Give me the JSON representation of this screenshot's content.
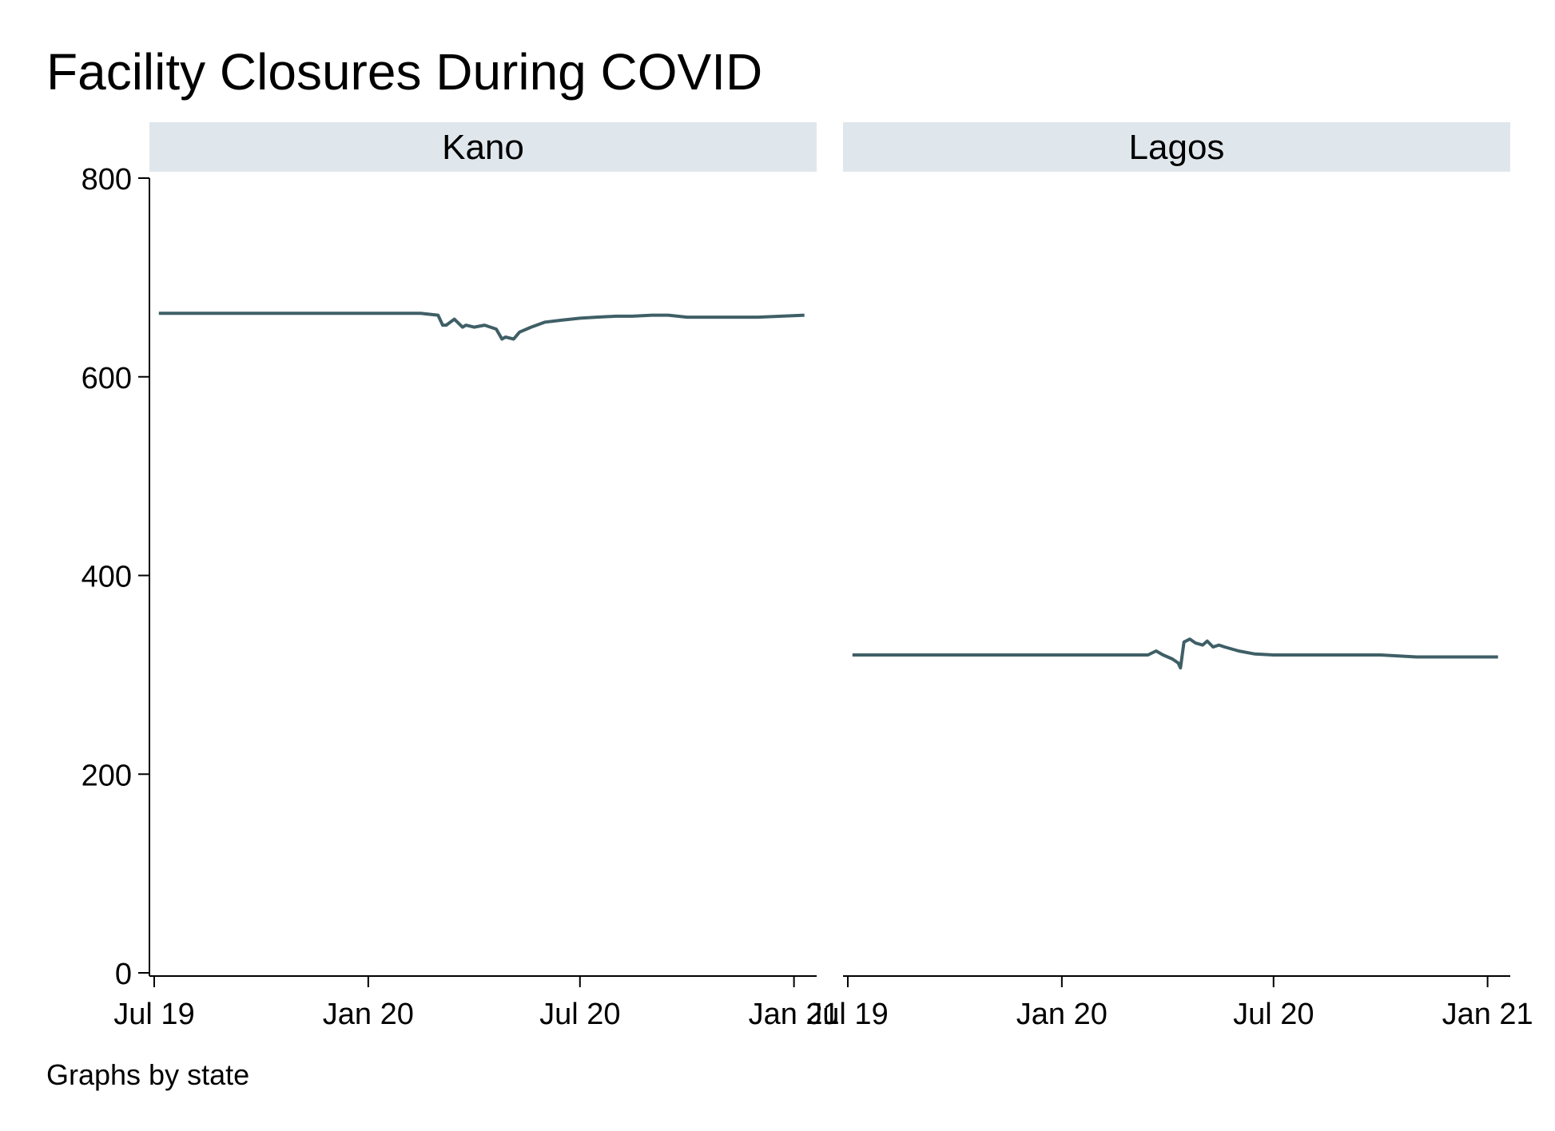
{
  "chart_data": {
    "type": "line",
    "title": "Facility Closures During COVID",
    "note": "Graphs by state",
    "xlabel": "",
    "ylabel": "",
    "x_unit": "month",
    "xlim": [
      "2019-07-01",
      "2021-01-15"
    ],
    "ylim": [
      0,
      800
    ],
    "yticks": [
      0,
      200,
      400,
      600,
      800
    ],
    "xticks": [
      {
        "date": "2019-07-01",
        "label": "Jul 19"
      },
      {
        "date": "2020-01-01",
        "label": "Jan 20"
      },
      {
        "date": "2020-07-01",
        "label": "Jul 20"
      },
      {
        "date": "2021-01-01",
        "label": "Jan 21"
      }
    ],
    "grid": false,
    "line_color": "#3f5f66",
    "strip_color": "#dfe7ec",
    "panels": [
      {
        "name": "Kano",
        "series": [
          {
            "x": [
              "2019-07-05",
              "2019-09-01",
              "2019-11-01",
              "2020-01-01",
              "2020-02-15",
              "2020-03-01",
              "2020-03-05",
              "2020-03-08",
              "2020-03-15",
              "2020-03-22",
              "2020-03-25",
              "2020-04-01",
              "2020-04-10",
              "2020-04-20",
              "2020-04-25",
              "2020-04-28",
              "2020-05-05",
              "2020-05-10",
              "2020-05-20",
              "2020-06-01",
              "2020-06-15",
              "2020-07-01",
              "2020-07-15",
              "2020-08-01",
              "2020-08-15",
              "2020-09-01",
              "2020-09-15",
              "2020-10-01",
              "2020-11-01",
              "2020-12-01",
              "2021-01-10"
            ],
            "y": [
              664,
              664,
              664,
              664,
              664,
              662,
              652,
              652,
              658,
              650,
              652,
              650,
              652,
              648,
              638,
              640,
              638,
              645,
              650,
              655,
              657,
              659,
              660,
              661,
              661,
              662,
              662,
              660,
              660,
              660,
              662
            ]
          }
        ]
      },
      {
        "name": "Lagos",
        "series": [
          {
            "x": [
              "2019-07-05",
              "2019-09-01",
              "2019-11-01",
              "2020-01-01",
              "2020-02-01",
              "2020-03-15",
              "2020-03-22",
              "2020-03-28",
              "2020-04-05",
              "2020-04-10",
              "2020-04-12",
              "2020-04-15",
              "2020-04-20",
              "2020-04-25",
              "2020-05-01",
              "2020-05-05",
              "2020-05-10",
              "2020-05-15",
              "2020-05-20",
              "2020-06-01",
              "2020-06-15",
              "2020-07-01",
              "2020-08-01",
              "2020-09-01",
              "2020-10-01",
              "2020-11-01",
              "2020-12-01",
              "2021-01-10"
            ],
            "y": [
              320,
              320,
              320,
              320,
              320,
              320,
              324,
              320,
              316,
              312,
              307,
              333,
              336,
              332,
              330,
              334,
              328,
              330,
              328,
              324,
              321,
              320,
              320,
              320,
              320,
              318,
              318,
              318
            ]
          }
        ]
      }
    ]
  }
}
